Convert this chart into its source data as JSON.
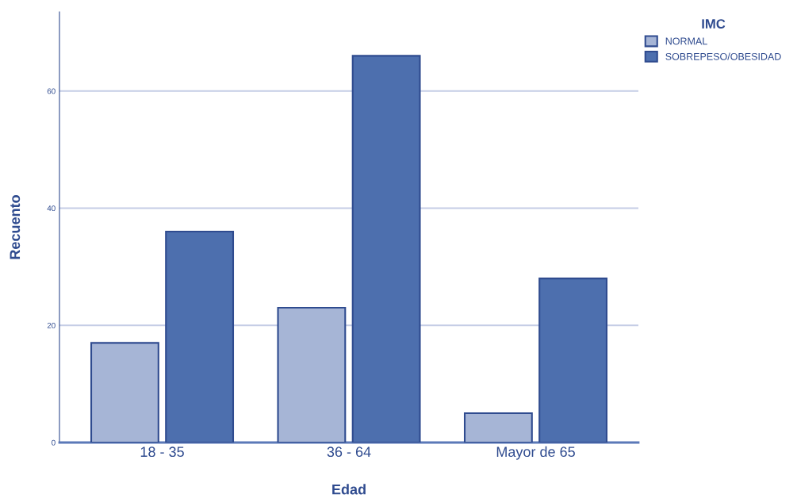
{
  "chart_data": {
    "type": "bar",
    "xlabel": "Edad",
    "ylabel": "Recuento",
    "legend_title": "IMC",
    "categories": [
      "18 - 35",
      "36 - 64",
      "Mayor de 65"
    ],
    "series": [
      {
        "name": "NORMAL",
        "color": "#a6b5d6",
        "values": [
          17,
          23,
          5
        ]
      },
      {
        "name": "SOBREPESO/OBESIDAD",
        "color": "#4d6fae",
        "values": [
          36,
          66,
          28
        ]
      }
    ],
    "ylim": [
      0,
      73.5
    ],
    "yticks": [
      0,
      20,
      40,
      60
    ],
    "grid": "y",
    "legend": "top right"
  }
}
